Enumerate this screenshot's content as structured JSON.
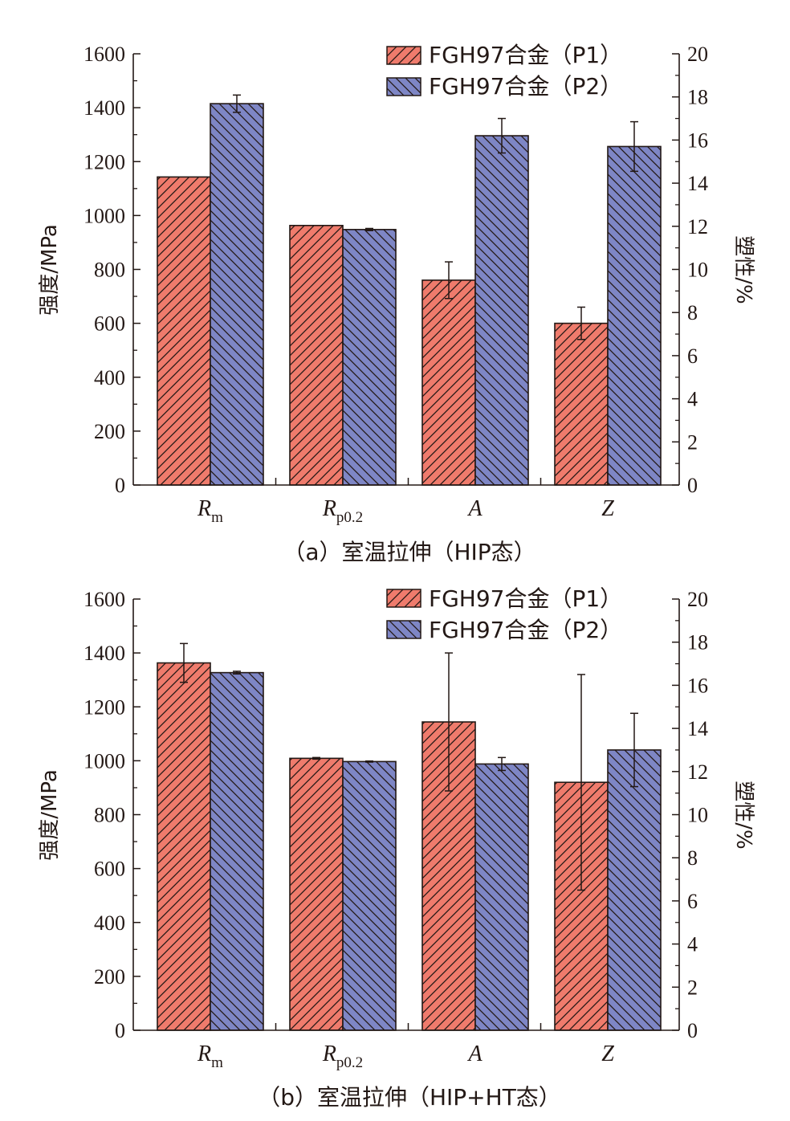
{
  "colors": {
    "p1": "#ef7b6c",
    "p2": "#7e86c5",
    "ink": "#231815"
  },
  "legend_position": "top-right",
  "chart_data": [
    {
      "type": "bar",
      "caption": "（a）室温拉伸（HIP态）",
      "categories": [
        {
          "main": "R",
          "sub": "m"
        },
        {
          "main": "R",
          "sub": "p0.2"
        },
        {
          "main": "A",
          "sub": ""
        },
        {
          "main": "Z",
          "sub": ""
        }
      ],
      "ylabel_left": "强度/MPa",
      "ylabel_right": "塑性/%",
      "ylim_left": [
        0,
        1600
      ],
      "ylim_right": [
        0,
        20
      ],
      "yticks_left": [
        0,
        200,
        400,
        600,
        800,
        1000,
        1200,
        1400,
        1600
      ],
      "yticks_right": [
        0,
        2,
        4,
        6,
        8,
        10,
        12,
        14,
        16,
        18,
        20
      ],
      "axis_for_category": [
        "left",
        "left",
        "right",
        "right"
      ],
      "grid": false,
      "series": [
        {
          "name": "FGH97合金（P1）",
          "values": [
            1143,
            963,
            9.5,
            7.5
          ],
          "errors": [
            0,
            0,
            0.85,
            0.75
          ]
        },
        {
          "name": "FGH97合金（P2）",
          "values": [
            1415,
            948,
            16.2,
            15.7
          ],
          "errors": [
            32,
            4,
            0.8,
            1.15
          ]
        }
      ]
    },
    {
      "type": "bar",
      "caption": "（b）室温拉伸（HIP+HT态）",
      "categories": [
        {
          "main": "R",
          "sub": "m"
        },
        {
          "main": "R",
          "sub": "p0.2"
        },
        {
          "main": "A",
          "sub": ""
        },
        {
          "main": "Z",
          "sub": ""
        }
      ],
      "ylabel_left": "强度/MPa",
      "ylabel_right": "塑性/%",
      "ylim_left": [
        0,
        1600
      ],
      "ylim_right": [
        0,
        20
      ],
      "yticks_left": [
        0,
        200,
        400,
        600,
        800,
        1000,
        1200,
        1400,
        1600
      ],
      "yticks_right": [
        0,
        2,
        4,
        6,
        8,
        10,
        12,
        14,
        16,
        18,
        20
      ],
      "axis_for_category": [
        "left",
        "left",
        "right",
        "right"
      ],
      "grid": false,
      "series": [
        {
          "name": "FGH97合金（P1）",
          "values": [
            1363,
            1009,
            14.3,
            11.5
          ],
          "errors": [
            72,
            3,
            3.2,
            5.0
          ]
        },
        {
          "name": "FGH97合金（P2）",
          "values": [
            1327,
            997,
            12.35,
            13.0
          ],
          "errors": [
            5,
            2,
            0.3,
            1.7
          ]
        }
      ]
    }
  ]
}
